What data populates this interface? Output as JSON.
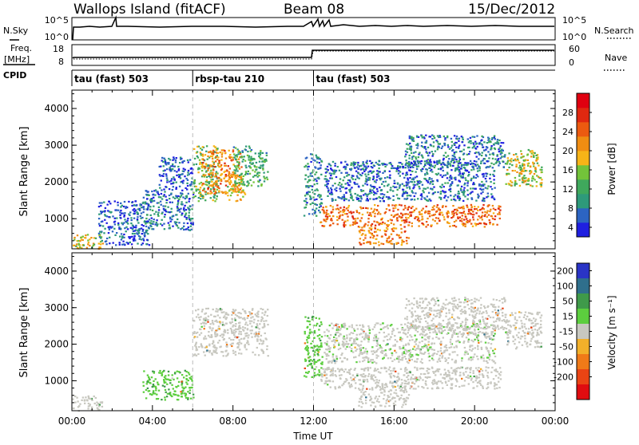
{
  "header": {
    "site": "Wallops Island (fitACF)",
    "beam": "Beam 08",
    "date": "15/Dec/2012"
  },
  "panels": {
    "nsky_label": "N.Sky",
    "nsky_ticks": [
      "10^5",
      "10^0"
    ],
    "nsearch_label": "N.Search",
    "nsearch_ticks": [
      "10^5",
      "10^0"
    ],
    "freq_label_line1": "Freq.",
    "freq_label_line2": "[MHz]",
    "freq_ticks": [
      "18",
      "8"
    ],
    "nave_label": "Nave",
    "nave_ticks": [
      "60",
      "0"
    ],
    "cpid_label": "CPID",
    "cpid_segments": [
      {
        "label": "tau (fast) 503",
        "start_hour": 0
      },
      {
        "label": "rbsp-tau 210",
        "start_hour": 6
      },
      {
        "label": "tau (fast) 503",
        "start_hour": 12
      }
    ]
  },
  "chart_data": [
    {
      "type": "heatmap",
      "title": "",
      "xlabel": "",
      "ylabel": "Slant Range [km]",
      "xlim": [
        0,
        24
      ],
      "ylim": [
        180,
        4500
      ],
      "y_ticks": [
        "1000",
        "2000",
        "3000",
        "4000"
      ],
      "colorbar": {
        "label": "Power [dB]",
        "ticks": [
          "4",
          "8",
          "12",
          "16",
          "20",
          "24",
          "28"
        ],
        "colors": [
          "#1f1fe0",
          "#2c64c2",
          "#2e9a7a",
          "#3fa85c",
          "#73c33a",
          "#f7b417",
          "#f08d12",
          "#ec5a10",
          "#e02810",
          "#e00010"
        ]
      },
      "regions": [
        {
          "hours": [
            0.0,
            1.5
          ],
          "range_km": [
            200,
            600
          ],
          "value": 18
        },
        {
          "hours": [
            1.3,
            3.8
          ],
          "range_km": [
            300,
            1500
          ],
          "value": 6
        },
        {
          "hours": [
            3.5,
            6.0
          ],
          "range_km": [
            700,
            1800
          ],
          "value": 7
        },
        {
          "hours": [
            4.3,
            6.0
          ],
          "range_km": [
            1800,
            2700
          ],
          "value": 6
        },
        {
          "hours": [
            6.0,
            7.3
          ],
          "range_km": [
            1500,
            3000
          ],
          "value": 14
        },
        {
          "hours": [
            6.4,
            8.4
          ],
          "range_km": [
            1700,
            2900
          ],
          "value": 22
        },
        {
          "hours": [
            7.7,
            8.6
          ],
          "range_km": [
            1500,
            2100
          ],
          "value": 18
        },
        {
          "hours": [
            8.0,
            9.7
          ],
          "range_km": [
            1900,
            3000
          ],
          "value": 12
        },
        {
          "hours": [
            11.5,
            12.4
          ],
          "range_km": [
            1100,
            2800
          ],
          "value": 9
        },
        {
          "hours": [
            12.3,
            21.3
          ],
          "range_km": [
            800,
            1400
          ],
          "value": 24
        },
        {
          "hours": [
            14.2,
            16.7
          ],
          "range_km": [
            300,
            800
          ],
          "value": 22
        },
        {
          "hours": [
            12.5,
            21.0
          ],
          "range_km": [
            1500,
            2600
          ],
          "value": 7
        },
        {
          "hours": [
            16.5,
            21.5
          ],
          "range_km": [
            2400,
            3300
          ],
          "value": 8
        },
        {
          "hours": [
            21.5,
            23.3
          ],
          "range_km": [
            1900,
            2900
          ],
          "value": 17
        }
      ]
    },
    {
      "type": "heatmap",
      "title": "",
      "xlabel": "Time UT",
      "ylabel": "Slant Range [km]",
      "xlim": [
        0,
        24
      ],
      "ylim": [
        180,
        4500
      ],
      "x_ticks": [
        "00:00",
        "04:00",
        "08:00",
        "12:00",
        "16:00",
        "20:00",
        "00:00"
      ],
      "y_ticks": [
        "1000",
        "2000",
        "3000",
        "4000"
      ],
      "colorbar": {
        "label": "Velocity [m s⁻¹]",
        "ticks": [
          "200",
          "100",
          "50",
          "15",
          "-15",
          "-50",
          "-100",
          "-200"
        ],
        "colors": [
          "#2a34c6",
          "#2f6f8c",
          "#3f9a4a",
          "#5cce3e",
          "#c8c8c0",
          "#f2b02a",
          "#f07a18",
          "#ea4414",
          "#e00c10"
        ]
      },
      "regions": [
        {
          "hours": [
            0.0,
            1.5
          ],
          "range_km": [
            200,
            600
          ],
          "value": 0
        },
        {
          "hours": [
            3.5,
            6.0
          ],
          "range_km": [
            500,
            1300
          ],
          "value": 40
        },
        {
          "hours": [
            6.0,
            9.7
          ],
          "range_km": [
            1700,
            3000
          ],
          "value": 0
        },
        {
          "hours": [
            11.5,
            12.4
          ],
          "range_km": [
            1100,
            2800
          ],
          "value": 40
        },
        {
          "hours": [
            12.3,
            21.3
          ],
          "range_km": [
            800,
            1400
          ],
          "value": 0
        },
        {
          "hours": [
            14.2,
            16.7
          ],
          "range_km": [
            300,
            800
          ],
          "value": 0
        },
        {
          "hours": [
            12.5,
            21.0
          ],
          "range_km": [
            1500,
            2600
          ],
          "value": 5
        },
        {
          "hours": [
            16.5,
            21.5
          ],
          "range_km": [
            2400,
            3300
          ],
          "value": 0
        },
        {
          "hours": [
            21.5,
            23.3
          ],
          "range_km": [
            1900,
            2900
          ],
          "value": 0
        }
      ]
    }
  ]
}
